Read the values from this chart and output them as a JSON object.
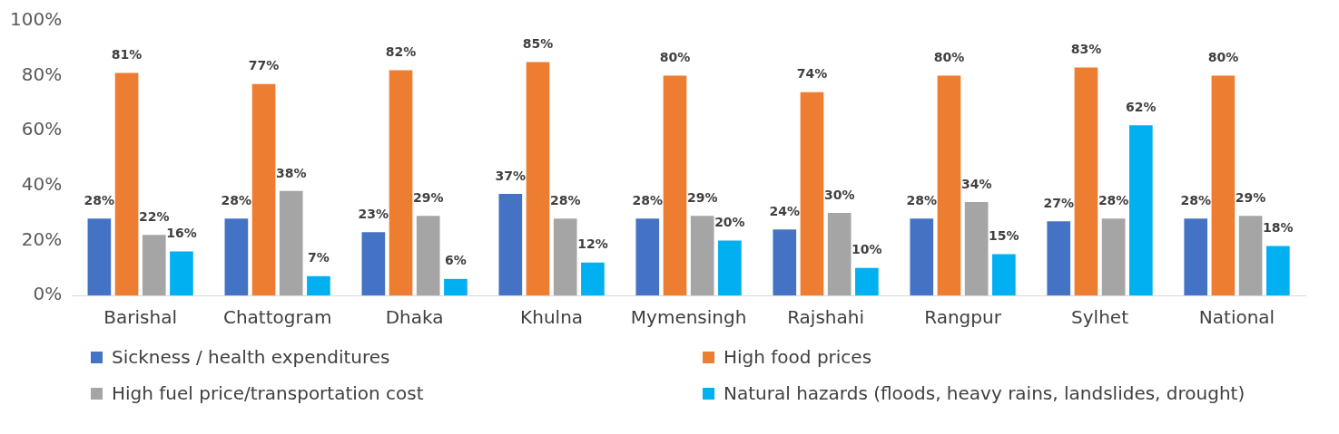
{
  "chart_data": {
    "type": "bar",
    "categories": [
      "Barishal",
      "Chattogram",
      "Dhaka",
      "Khulna",
      "Mymensingh",
      "Rajshahi",
      "Rangpur",
      "Sylhet",
      "National"
    ],
    "series": [
      {
        "name": "Sickness / health expenditures",
        "color": "#4472c4",
        "values": [
          28,
          28,
          23,
          37,
          28,
          24,
          28,
          27,
          28
        ],
        "value_labels": [
          "28%",
          "28%",
          "23%",
          "37%",
          "28%",
          "24%",
          "28%",
          "27%",
          "28%"
        ]
      },
      {
        "name": "High food prices",
        "color": "#ed7d31",
        "values": [
          81,
          77,
          82,
          85,
          80,
          74,
          80,
          83,
          80
        ],
        "value_labels": [
          "81%",
          "77%",
          "82%",
          "85%",
          "80%",
          "74%",
          "80%",
          "83%",
          "80%"
        ]
      },
      {
        "name": "High fuel price/transportation cost",
        "color": "#a5a5a5",
        "values": [
          22,
          38,
          29,
          28,
          29,
          30,
          34,
          28,
          29
        ],
        "value_labels": [
          "22%",
          "38%",
          "29%",
          "28%",
          "29%",
          "30%",
          "34%",
          "28%",
          "29%"
        ]
      },
      {
        "name": "Natural hazards (floods, heavy rains, landslides, drought)",
        "color": "#00b0f0",
        "values": [
          16,
          7,
          6,
          12,
          20,
          10,
          15,
          62,
          18
        ],
        "value_labels": [
          "16%",
          "7%",
          "6%",
          "12%",
          "20%",
          "10%",
          "15%",
          "62%",
          "18%"
        ]
      }
    ],
    "ylim": [
      0,
      100
    ],
    "yticks": [
      {
        "value": 0,
        "label": "0%"
      },
      {
        "value": 20,
        "label": "20%"
      },
      {
        "value": 40,
        "label": "40%"
      },
      {
        "value": 60,
        "label": "60%"
      },
      {
        "value": 80,
        "label": "80%"
      },
      {
        "value": 100,
        "label": "100%"
      }
    ],
    "grid": false,
    "legend": "bottom"
  }
}
